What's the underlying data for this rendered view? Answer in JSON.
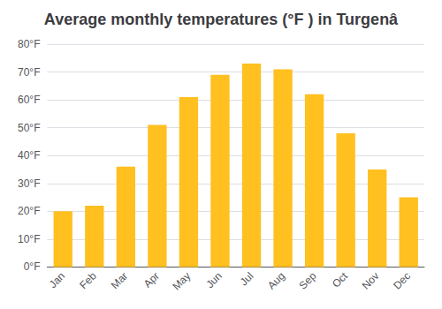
{
  "chart_data": {
    "type": "bar",
    "title": "Average monthly temperatures (°F ) in Turgenâ",
    "categories": [
      "Jan",
      "Feb",
      "Mar",
      "Apr",
      "May",
      "Jun",
      "Jul",
      "Aug",
      "Sep",
      "Oct",
      "Nov",
      "Dec"
    ],
    "values": [
      20,
      22,
      36,
      51,
      61,
      69,
      73,
      71,
      62,
      48,
      35,
      25
    ],
    "color": "#FFC020",
    "ylim": [
      0,
      80
    ],
    "yticks": [
      {
        "value": 0,
        "label": "0°F"
      },
      {
        "value": 10,
        "label": "10°F"
      },
      {
        "value": 20,
        "label": "20°F"
      },
      {
        "value": 30,
        "label": "30°F"
      },
      {
        "value": 40,
        "label": "40°F"
      },
      {
        "value": 50,
        "label": "50°F"
      },
      {
        "value": 60,
        "label": "60°F"
      },
      {
        "value": 70,
        "label": "70°F"
      },
      {
        "value": 80,
        "label": "80°F"
      }
    ],
    "grid": true
  }
}
